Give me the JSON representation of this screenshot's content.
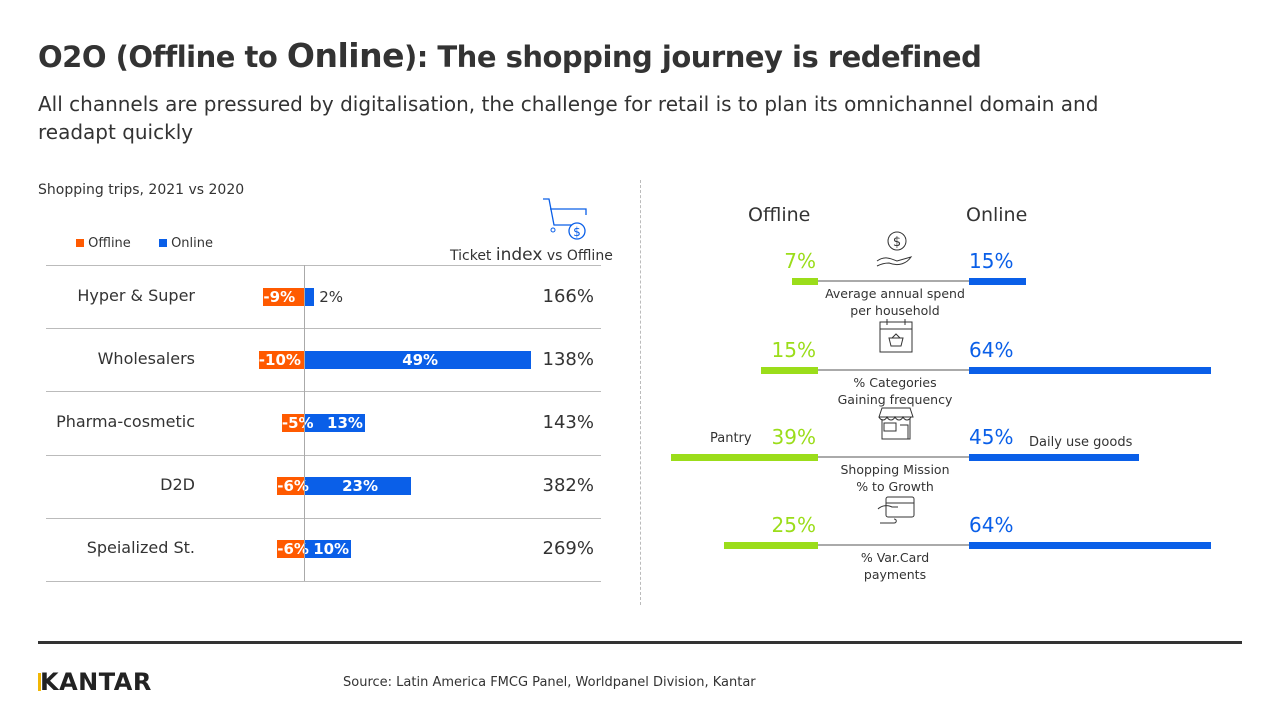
{
  "title": {
    "part1": "O2O (Offline to ",
    "part2": "Online",
    "part3": "): The shopping journey is redefined"
  },
  "subtitle": "All channels are pressured by digitalisation, the challenge for retail is to plan its omnichannel domain and readapt quickly",
  "colors": {
    "offline_left": "#FF5A00",
    "online": "#0A5FE8",
    "offline_right": "#9BDD1A"
  },
  "chart_data": [
    {
      "type": "bar",
      "title": "Shopping trips, 2021 vs 2020",
      "title_parts": {
        "a": "Shopping ",
        "b": "trips",
        ".c": ", 2021 vs 2020"
      },
      "legend": [
        "Offline",
        "Online"
      ],
      "legend_placement": "top-left",
      "categories": [
        "Hyper & Super",
        "Wholesalers",
        "Pharma-cosmetic",
        "D2D",
        "Speialized St."
      ],
      "series": [
        {
          "name": "Offline",
          "values": [
            -9,
            -10,
            -5,
            -6,
            -6
          ],
          "labels": [
            "-9%",
            "-10%",
            "-5%",
            "-6%",
            "-6%"
          ]
        },
        {
          "name": "Online",
          "values": [
            2,
            49,
            13,
            23,
            10
          ],
          "labels": [
            "2%",
            "49%",
            "13%",
            "23%",
            "10%"
          ]
        }
      ],
      "ticket_index": {
        "header_a": "Ticket ",
        "header_b": "index",
        "header_c": " vs Offline",
        "icon": "shopping-cart-dollar-icon",
        "values": [
          "166%",
          "138%",
          "143%",
          "382%",
          "269%"
        ]
      }
    },
    {
      "type": "bar",
      "headers": {
        "offline": "Offline",
        "online": "Online"
      },
      "metrics": [
        {
          "label_lines": [
            "Average annual spend",
            "per household"
          ],
          "icon": "hand-coin-icon",
          "offline": 7,
          "online": 15,
          "offline_label": "7%",
          "online_label": "15%"
        },
        {
          "label_lines": [
            "% Categories",
            "Gaining frequency"
          ],
          "icon": "calendar-basket-icon",
          "offline": 15,
          "online": 64,
          "offline_label": "15%",
          "online_label": "64%"
        },
        {
          "label_lines": [
            "Shopping Mission",
            "% to Growth"
          ],
          "icon": "storefront-icon",
          "offline": 39,
          "online": 45,
          "offline_label": "39%",
          "online_label": "45%",
          "offline_note": "Pantry",
          "online_note": "Daily use goods"
        },
        {
          "label_lines": [
            "% Var.Card",
            "payments"
          ],
          "icon": "card-payment-icon",
          "offline": 25,
          "online": 64,
          "offline_label": "25%",
          "online_label": "64%"
        }
      ]
    }
  ],
  "footer": {
    "logo": "KANTAR",
    "source": "Source: Latin America FMCG Panel, Worldpanel Division, Kantar"
  }
}
